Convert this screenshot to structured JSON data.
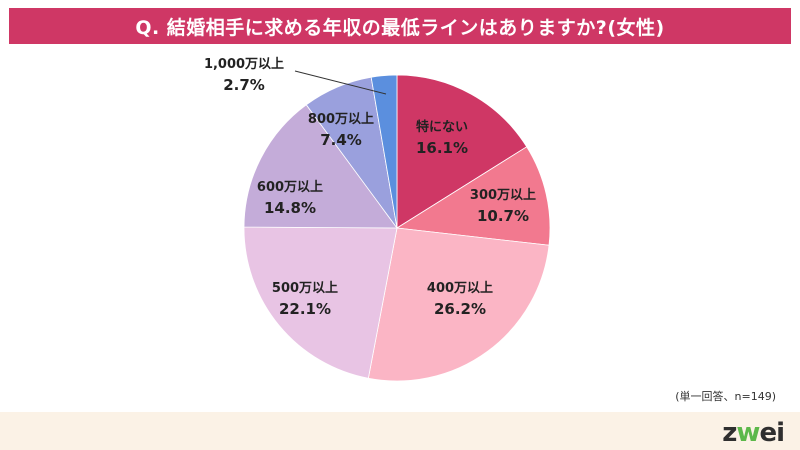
{
  "title": "Q. 結婚相手に求める年収の最低ラインはありますか?(女性)",
  "footnote": "(単一回答、n=149)",
  "logo": {
    "lead": "z",
    "accent": "w",
    "tail": "ei"
  },
  "colors": {
    "banner": "#cf3765",
    "footer": "#fbf2e6"
  },
  "chart_data": {
    "type": "pie",
    "title": "Q. 結婚相手に求める年収の最低ラインはありますか?(女性)",
    "start_angle_deg": 0,
    "direction": "clockwise",
    "slices": [
      {
        "label": "特にない",
        "value": 16.1,
        "value_label": "16.1%",
        "color": "#cf3765"
      },
      {
        "label": "300万以上",
        "value": 10.7,
        "value_label": "10.7%",
        "color": "#f2798f"
      },
      {
        "label": "400万以上",
        "value": 26.2,
        "value_label": "26.2%",
        "color": "#fbb5c5"
      },
      {
        "label": "500万以上",
        "value": 22.1,
        "value_label": "22.1%",
        "color": "#e8c4e4"
      },
      {
        "label": "600万以上",
        "value": 14.8,
        "value_label": "14.8%",
        "color": "#c4acd9"
      },
      {
        "label": "800万以上",
        "value": 7.4,
        "value_label": "7.4%",
        "color": "#9aa0dd"
      },
      {
        "label": "1,000万以上",
        "value": 2.7,
        "value_label": "2.7%",
        "color": "#5b8fde"
      }
    ]
  }
}
